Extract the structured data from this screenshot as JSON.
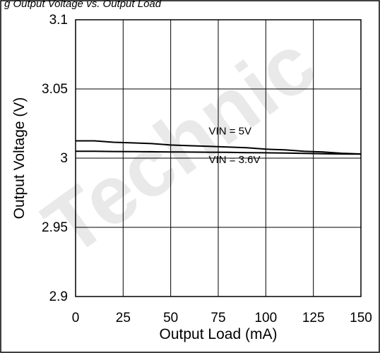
{
  "header_text": "g Output Voltage vs. Output Load",
  "watermark_text": "Technic",
  "chart_data": {
    "type": "line",
    "title": "",
    "xlabel": "Output Load (mA)",
    "ylabel": "Output Voltage (V)",
    "xlim": [
      0,
      150
    ],
    "ylim": [
      2.9,
      3.1
    ],
    "xticks": [
      0,
      25,
      50,
      75,
      100,
      125,
      150
    ],
    "yticks": [
      2.9,
      2.95,
      3,
      3.05,
      3.1
    ],
    "xtick_labels": [
      "0",
      "25",
      "50",
      "75",
      "100",
      "125",
      "150"
    ],
    "ytick_labels": [
      "2.9",
      "2.95",
      "3",
      "3.05",
      "3.1"
    ],
    "grid": true,
    "legend": "none",
    "series": [
      {
        "name": "VIN = 5V",
        "color": "#000000",
        "x": [
          0,
          10,
          20,
          30,
          40,
          50,
          60,
          70,
          80,
          90,
          100,
          110,
          120,
          130,
          140,
          150
        ],
        "y": [
          3.0125,
          3.0125,
          3.0115,
          3.011,
          3.0105,
          3.0095,
          3.009,
          3.0085,
          3.008,
          3.0075,
          3.0065,
          3.006,
          3.005,
          3.0045,
          3.0035,
          3.003
        ]
      },
      {
        "name": "VIN = 3.6V",
        "color": "#000000",
        "x": [
          0,
          10,
          20,
          30,
          40,
          50,
          60,
          70,
          80,
          90,
          100,
          110,
          120,
          130,
          140,
          150
        ],
        "y": [
          3.005,
          3.005,
          3.0048,
          3.0047,
          3.0046,
          3.0045,
          3.0044,
          3.0043,
          3.0042,
          3.004,
          3.0039,
          3.0037,
          3.0034,
          3.0032,
          3.003,
          3.0029
        ]
      }
    ],
    "annotations": [
      {
        "text": "VIN = 5V",
        "x": 70,
        "y": 3.017
      },
      {
        "text": "VIN = 3.6V",
        "x": 70,
        "y": 2.9965
      }
    ]
  }
}
